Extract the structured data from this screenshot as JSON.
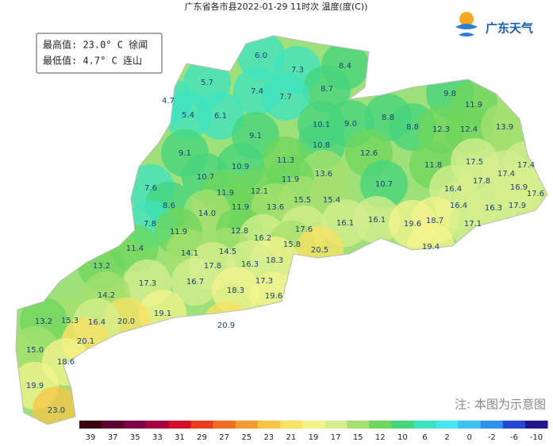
{
  "title": "广东省各市县2022-01-29 11时次 温度(度(C))",
  "summary": {
    "max": "最高值: 23.0° C 徐闻",
    "min": "最低值: 4.7° C 连山"
  },
  "logo": "广东天气",
  "note": "注: 本图为示意图",
  "stations": [
    "6.0",
    "7.3",
    "8.4",
    "5.7",
    "7.4",
    "8.7",
    "4.7",
    "7.7",
    "9.8",
    "11.9",
    "5.4",
    "6.1",
    "10.1",
    "9.0",
    "8.8",
    "8.8",
    "12.3",
    "12.4",
    "13.9",
    "9.1",
    "10.8",
    "12.6",
    "9.1",
    "11.3",
    "11.8",
    "17.5",
    "17.4",
    "13.6",
    "17.4",
    "10.7",
    "10.9",
    "11.9",
    "10.7",
    "17.8",
    "16.9",
    "17.6",
    "7.6",
    "11.9",
    "12.1",
    "15.5",
    "15.4",
    "16.4",
    "8.6",
    "11.9",
    "13.6",
    "16.4",
    "16.3",
    "17.9",
    "14.0",
    "16.1",
    "16.1",
    "19.6",
    "18.7",
    "17.1",
    "7.8",
    "17.6",
    "12.8",
    "11.9",
    "16.2",
    "15.8",
    "19.4",
    "20.5",
    "11.4",
    "14.1",
    "14.5",
    "18.3",
    "13.2",
    "17.8",
    "16.3",
    "17.3",
    "16.7",
    "17.3",
    "18.3",
    "19.6",
    "14.2",
    "19.1",
    "20.0",
    "15.3",
    "16.4",
    "13.2",
    "20.9",
    "20.1",
    "15.0",
    "18.6",
    "19.9",
    "23.0"
  ],
  "legend": {
    "ticks": [
      39,
      37,
      35,
      33,
      31,
      29,
      27,
      25,
      23,
      21,
      19,
      17,
      15,
      12,
      10,
      6,
      2,
      0,
      -2,
      -6,
      -10
    ],
    "colors": [
      "#3a0010",
      "#5c0030",
      "#7e0046",
      "#a8003c",
      "#d2102a",
      "#e83c1e",
      "#f06c22",
      "#f59a30",
      "#f8c444",
      "#fae262",
      "#f4f48c",
      "#d6ef8e",
      "#a6e06e",
      "#6ed65c",
      "#44d47c",
      "#3de3c0",
      "#44e6f2",
      "#3ec0f2",
      "#3090ee",
      "#2448d0",
      "#22168c"
    ]
  }
}
